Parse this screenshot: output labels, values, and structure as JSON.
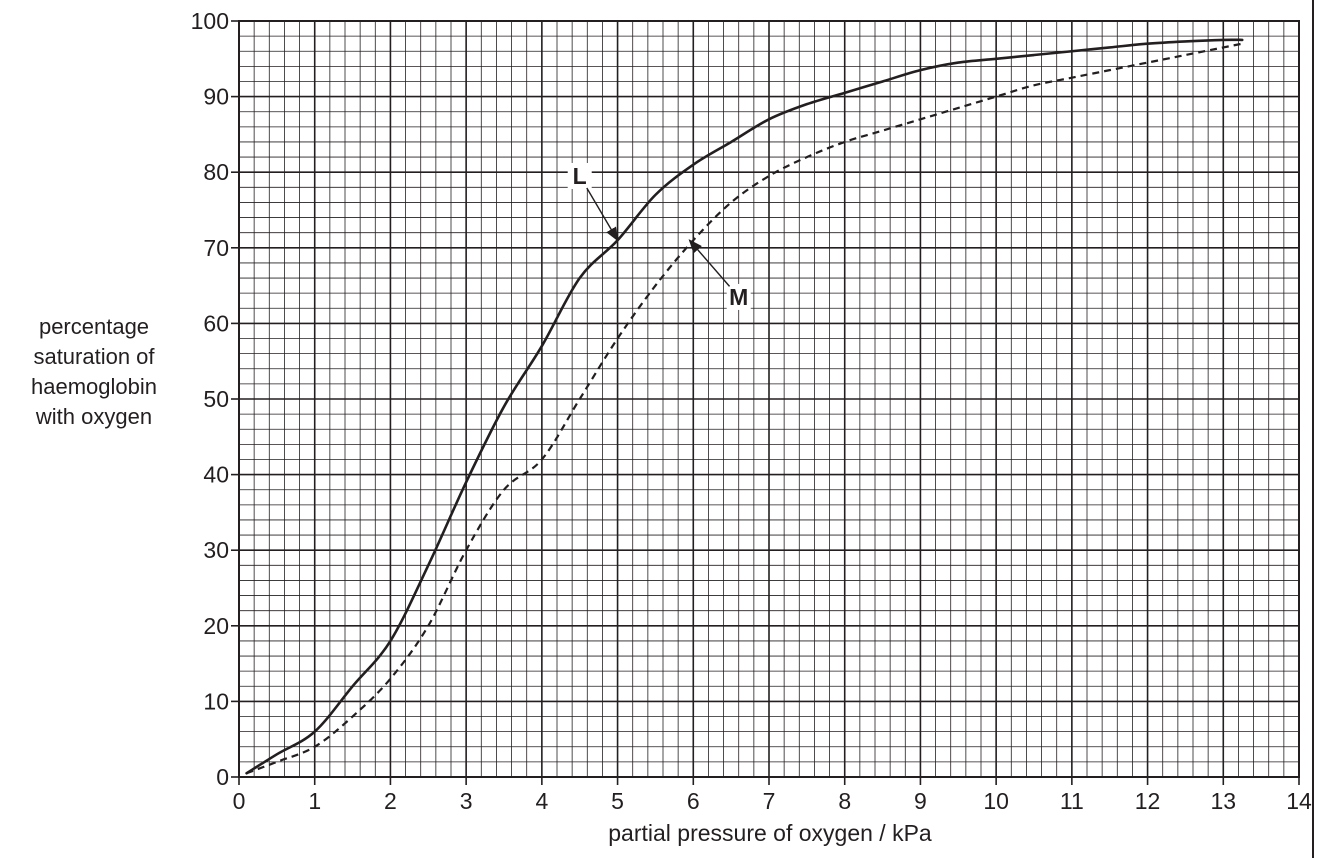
{
  "chart_data": {
    "type": "line",
    "title": "",
    "xlabel": "partial pressure of oxygen / kPa",
    "ylabel_lines": [
      "percentage",
      "saturation of",
      "haemoglobin",
      "with oxygen"
    ],
    "xlim": [
      0,
      14
    ],
    "ylim": [
      0,
      100
    ],
    "x_ticks": [
      "0",
      "1",
      "2",
      "3",
      "4",
      "5",
      "6",
      "7",
      "8",
      "9",
      "10",
      "11",
      "12",
      "13",
      "14"
    ],
    "y_ticks": [
      "0",
      "10",
      "20",
      "30",
      "40",
      "50",
      "60",
      "70",
      "80",
      "90",
      "100"
    ],
    "grid": true,
    "series": [
      {
        "name": "L",
        "style": "solid",
        "x": [
          0.1,
          0.5,
          1.0,
          1.5,
          2.0,
          2.5,
          3.0,
          3.5,
          4.0,
          4.5,
          5.0,
          5.5,
          6.0,
          6.5,
          7.0,
          7.5,
          8.0,
          8.5,
          9.0,
          9.5,
          10.0,
          10.5,
          11.0,
          11.5,
          12.0,
          12.5,
          13.0,
          13.25
        ],
        "y": [
          0.5,
          3,
          6,
          12,
          18,
          28,
          39,
          49,
          57,
          66,
          71,
          77,
          81,
          84,
          87,
          89,
          90.5,
          92,
          93.5,
          94.5,
          95,
          95.5,
          96,
          96.5,
          97,
          97.3,
          97.5,
          97.5
        ]
      },
      {
        "name": "M",
        "style": "dashed",
        "x": [
          0.1,
          0.5,
          1.0,
          1.5,
          2.0,
          2.5,
          3.0,
          3.5,
          4.0,
          4.5,
          5.0,
          5.5,
          6.0,
          6.5,
          7.0,
          7.5,
          8.0,
          8.5,
          9.0,
          9.5,
          10.0,
          10.5,
          11.0,
          11.5,
          12.0,
          12.5,
          13.0,
          13.25
        ],
        "y": [
          0.5,
          2,
          4,
          8,
          13,
          20,
          30,
          38,
          42,
          50,
          58,
          65,
          71,
          76,
          79.5,
          82,
          84,
          85.5,
          87,
          88.5,
          90,
          91.5,
          92.5,
          93.5,
          94.5,
          95.5,
          96.5,
          97
        ]
      }
    ],
    "annotations": [
      {
        "text": "L",
        "x": 4.5,
        "y": 79.5
      },
      {
        "text": "M",
        "x": 6.6,
        "y": 63.5
      }
    ]
  }
}
